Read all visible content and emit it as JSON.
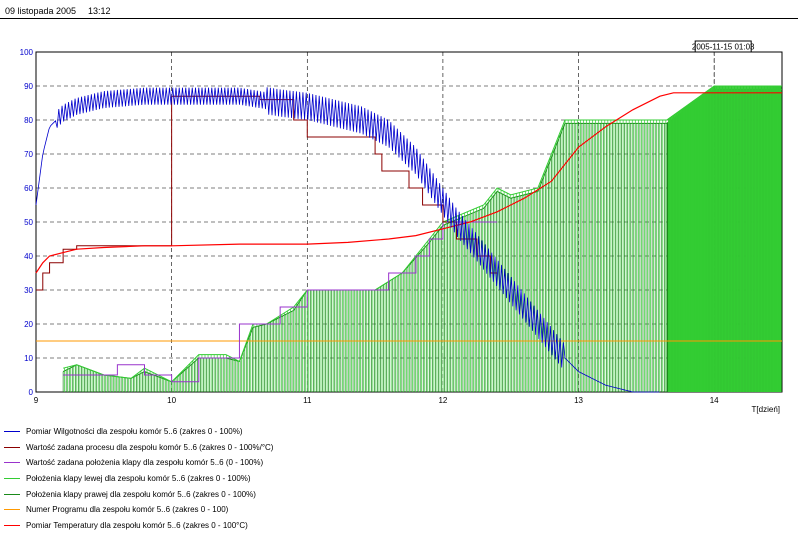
{
  "header": {
    "date": "09 listopada 2005",
    "time": "13:12"
  },
  "chart_data": {
    "type": "line",
    "xlabel": "T[dzień]",
    "ylabel": "",
    "xlim": [
      9,
      14.5
    ],
    "ylim": [
      0,
      100
    ],
    "x_ticks": [
      9,
      10,
      11,
      12,
      13,
      14
    ],
    "y_ticks": [
      0,
      10,
      20,
      30,
      40,
      50,
      60,
      70,
      80,
      90,
      100
    ],
    "grid": true,
    "cursor_label": "2005-11-15 01:03",
    "cursor_x": 14.0,
    "legend_position": "bottom",
    "colors": {
      "humidity": "#0000cc",
      "setpoint_process": "#8b0000",
      "setpoint_flap": "#9933cc",
      "flap_left": "#33cc33",
      "flap_right": "#1a8a1a",
      "program": "#ff9900",
      "temperature": "#ff0000"
    },
    "series": [
      {
        "name": "Pomiar Wilgotności dla zespołu komór 5..6 (zakres 0 - 100%)",
        "key": "humidity",
        "x": [
          9.0,
          9.05,
          9.1,
          9.2,
          9.3,
          9.5,
          9.8,
          10.0,
          10.5,
          10.8,
          11.0,
          11.2,
          11.4,
          11.6,
          11.8,
          12.0,
          12.1,
          12.2,
          12.3,
          12.4,
          12.5,
          12.6,
          12.7,
          12.8,
          12.9,
          13.0,
          13.2,
          13.4,
          13.6
        ],
        "y": [
          55,
          70,
          78,
          82,
          84,
          86,
          87,
          87,
          87,
          85,
          84,
          82,
          80,
          76,
          68,
          56,
          50,
          45,
          40,
          35,
          30,
          25,
          20,
          15,
          10,
          6,
          2,
          0,
          0
        ]
      },
      {
        "name": "Wartość zadana procesu dla zespołu komór 5..6 (zakres 0 - 100%/°C)",
        "key": "setpoint_process",
        "x": [
          9.0,
          9.05,
          9.1,
          9.2,
          9.3,
          9.5,
          9.8,
          10.0,
          10.4,
          10.5,
          10.6,
          10.65,
          10.9,
          11.0,
          11.2,
          11.5,
          11.55,
          11.7,
          11.75,
          11.8,
          11.85,
          11.95,
          12.0,
          12.05,
          12.1,
          12.2,
          12.25,
          12.3,
          12.35,
          12.4
        ],
        "y": [
          30,
          35,
          38,
          42,
          43,
          43,
          43,
          87,
          87,
          87,
          87,
          86,
          80,
          75,
          75,
          70,
          65,
          65,
          60,
          60,
          55,
          55,
          50,
          50,
          45,
          45,
          40,
          40,
          35,
          35
        ]
      },
      {
        "name": "Wartość zadana położenia klapy dla zespołu komór 5..6 (0 - 100%)",
        "key": "setpoint_flap",
        "x": [
          9.2,
          9.4,
          9.6,
          9.8,
          10.0,
          10.2,
          10.4,
          10.5,
          10.7,
          10.8,
          11.0,
          11.5,
          11.6,
          11.7,
          11.8,
          11.9,
          12.0,
          12.4
        ],
        "y": [
          5,
          5,
          8,
          5,
          3,
          10,
          10,
          20,
          20,
          25,
          30,
          30,
          35,
          35,
          40,
          45,
          50,
          50
        ]
      },
      {
        "name": "Położenia klapy lewej dla zespołu komór 5..6 (zakres 0 - 100%)",
        "key": "flap_left",
        "x": [
          9.2,
          9.3,
          9.5,
          9.7,
          9.8,
          10.0,
          10.2,
          10.4,
          10.5,
          10.6,
          10.7,
          10.9,
          11.0,
          11.5,
          11.7,
          11.9,
          12.0,
          12.3,
          12.4,
          12.5,
          12.7,
          12.9,
          13.0,
          13.3,
          13.6,
          13.65,
          14.0,
          14.5
        ],
        "y": [
          7,
          8,
          5,
          4,
          7,
          3,
          11,
          11,
          9,
          20,
          20,
          25,
          30,
          30,
          35,
          45,
          50,
          55,
          60,
          58,
          60,
          80,
          80,
          80,
          80,
          80,
          90,
          90
        ]
      },
      {
        "name": "Położenia klapy prawej dla zespołu komór 5..6 (zakres 0 - 100%)",
        "key": "flap_right",
        "x": [
          9.2,
          9.3,
          9.5,
          9.7,
          9.8,
          10.0,
          10.2,
          10.4,
          10.5,
          10.6,
          10.7,
          10.9,
          11.0,
          11.5,
          11.7,
          11.9,
          12.0,
          12.3,
          12.4,
          12.5,
          12.7,
          12.9,
          13.0,
          13.3,
          13.6,
          13.65,
          14.0,
          14.5
        ],
        "y": [
          6,
          8,
          5,
          4,
          6,
          3,
          10,
          10,
          9,
          19,
          20,
          24,
          30,
          30,
          35,
          44,
          49,
          54,
          59,
          57,
          59,
          79,
          79,
          79,
          79,
          79,
          89,
          89
        ]
      },
      {
        "name": "Numer Programu dla zespołu komór 5..6 (zakres 0 - 100)",
        "key": "program",
        "x": [
          9.0,
          14.5
        ],
        "y": [
          15,
          15
        ]
      },
      {
        "name": "Pomiar Temperatury dla zespołu komór 5..6 (zakres 0 - 100°C)",
        "key": "temperature",
        "x": [
          9.0,
          9.05,
          9.1,
          9.2,
          9.3,
          9.5,
          9.8,
          10.0,
          10.5,
          11.0,
          11.3,
          11.6,
          11.8,
          12.0,
          12.2,
          12.4,
          12.6,
          12.8,
          13.0,
          13.2,
          13.4,
          13.6,
          13.7,
          14.0,
          14.5
        ],
        "y": [
          35,
          38,
          40,
          41,
          42,
          42.5,
          43,
          43,
          43.5,
          43.5,
          44,
          45,
          46,
          48,
          50,
          53,
          57,
          62,
          72,
          78,
          83,
          87,
          88,
          88,
          88
        ]
      }
    ]
  }
}
